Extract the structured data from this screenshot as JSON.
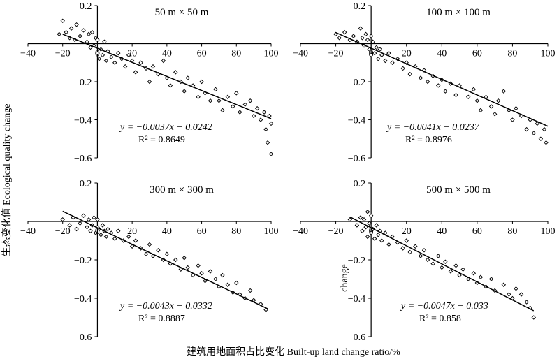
{
  "labels": {
    "y_axis": "生态变化值 Ecological quality change",
    "x_axis": "建筑用地面积占比变化 Built-up land change ratio/%",
    "panel4_extra_ylabel": "change"
  },
  "chart_data": [
    {
      "type": "scatter",
      "title": "50 m × 50 m",
      "xticks": [
        "−40",
        "−20",
        "0",
        "20",
        "40",
        "60",
        "80",
        "100"
      ],
      "yticks": [
        "0.2",
        "−0.2",
        "−0.4",
        "−0.6"
      ],
      "xlim": [
        -40,
        100
      ],
      "ylim": [
        -0.6,
        0.2
      ],
      "equation": "y = −0.0037x − 0.0242",
      "r2": "R² = 0.8649",
      "slope": -0.0037,
      "intercept": -0.0242,
      "line_x": [
        -20,
        100
      ],
      "points_x_range": [
        -22,
        100
      ],
      "points": [
        [
          -22,
          0.05
        ],
        [
          -20,
          0.12
        ],
        [
          -18,
          0.06
        ],
        [
          -16,
          0.03
        ],
        [
          -15,
          0.08
        ],
        [
          -13,
          0.02
        ],
        [
          -12,
          0.1
        ],
        [
          -10,
          0.04
        ],
        [
          -8,
          0.07
        ],
        [
          -6,
          0.01
        ],
        [
          -5,
          0.05
        ],
        [
          -4,
          -0.02
        ],
        [
          -3,
          0.06
        ],
        [
          -2,
          -0.01
        ],
        [
          -1,
          0.03
        ],
        [
          0,
          -0.05
        ],
        [
          0,
          0.02
        ],
        [
          1,
          -0.08
        ],
        [
          2,
          -0.03
        ],
        [
          3,
          -0.06
        ],
        [
          4,
          0.01
        ],
        [
          5,
          -0.09
        ],
        [
          6,
          -0.04
        ],
        [
          8,
          -0.07
        ],
        [
          10,
          -0.1
        ],
        [
          12,
          -0.05
        ],
        [
          14,
          -0.08
        ],
        [
          16,
          -0.12
        ],
        [
          18,
          -0.06
        ],
        [
          20,
          -0.09
        ],
        [
          22,
          -0.15
        ],
        [
          25,
          -0.1
        ],
        [
          28,
          -0.13
        ],
        [
          30,
          -0.2
        ],
        [
          32,
          -0.12
        ],
        [
          35,
          -0.16
        ],
        [
          38,
          -0.09
        ],
        [
          40,
          -0.18
        ],
        [
          42,
          -0.22
        ],
        [
          45,
          -0.15
        ],
        [
          48,
          -0.2
        ],
        [
          50,
          -0.25
        ],
        [
          52,
          -0.18
        ],
        [
          55,
          -0.22
        ],
        [
          58,
          -0.28
        ],
        [
          60,
          -0.2
        ],
        [
          62,
          -0.26
        ],
        [
          65,
          -0.3
        ],
        [
          68,
          -0.24
        ],
        [
          70,
          -0.3
        ],
        [
          72,
          -0.35
        ],
        [
          75,
          -0.28
        ],
        [
          78,
          -0.33
        ],
        [
          80,
          -0.26
        ],
        [
          82,
          -0.36
        ],
        [
          85,
          -0.32
        ],
        [
          88,
          -0.3
        ],
        [
          90,
          -0.38
        ],
        [
          92,
          -0.34
        ],
        [
          94,
          -0.4
        ],
        [
          96,
          -0.36
        ],
        [
          97,
          -0.45
        ],
        [
          98,
          -0.52
        ],
        [
          99,
          -0.38
        ],
        [
          100,
          -0.42
        ],
        [
          100,
          -0.58
        ]
      ]
    },
    {
      "type": "scatter",
      "title": "100 m × 100 m",
      "xticks": [
        "−40",
        "−20",
        "0",
        "20",
        "40",
        "60",
        "80",
        "100"
      ],
      "yticks": [
        "0.2",
        "−0.2",
        "−0.4",
        "−0.6"
      ],
      "xlim": [
        -40,
        100
      ],
      "ylim": [
        -0.6,
        0.2
      ],
      "equation": "y = −0.0041x − 0.0237",
      "r2": "R² = 0.8976",
      "slope": -0.0041,
      "intercept": -0.0237,
      "line_x": [
        -20,
        100
      ],
      "points": [
        [
          -20,
          0.05
        ],
        [
          -18,
          0.03
        ],
        [
          -15,
          0.06
        ],
        [
          -12,
          0.02
        ],
        [
          -10,
          0.04
        ],
        [
          -8,
          0.01
        ],
        [
          -6,
          0.08
        ],
        [
          -5,
          0.03
        ],
        [
          -4,
          -0.01
        ],
        [
          -3,
          0.05
        ],
        [
          -2,
          0.02
        ],
        [
          -1,
          -0.03
        ],
        [
          0,
          0.04
        ],
        [
          0,
          -0.06
        ],
        [
          1,
          0.01
        ],
        [
          2,
          -0.05
        ],
        [
          3,
          -0.02
        ],
        [
          4,
          -0.08
        ],
        [
          5,
          -0.03
        ],
        [
          6,
          -0.06
        ],
        [
          8,
          -0.09
        ],
        [
          10,
          -0.05
        ],
        [
          12,
          -0.1
        ],
        [
          15,
          -0.08
        ],
        [
          18,
          -0.13
        ],
        [
          20,
          -0.1
        ],
        [
          22,
          -0.16
        ],
        [
          25,
          -0.12
        ],
        [
          28,
          -0.18
        ],
        [
          30,
          -0.14
        ],
        [
          32,
          -0.2
        ],
        [
          35,
          -0.17
        ],
        [
          38,
          -0.22
        ],
        [
          40,
          -0.19
        ],
        [
          42,
          -0.25
        ],
        [
          45,
          -0.21
        ],
        [
          48,
          -0.27
        ],
        [
          50,
          -0.22
        ],
        [
          55,
          -0.28
        ],
        [
          58,
          -0.24
        ],
        [
          60,
          -0.3
        ],
        [
          62,
          -0.35
        ],
        [
          65,
          -0.28
        ],
        [
          68,
          -0.33
        ],
        [
          70,
          -0.37
        ],
        [
          72,
          -0.3
        ],
        [
          75,
          -0.25
        ],
        [
          78,
          -0.35
        ],
        [
          80,
          -0.4
        ],
        [
          82,
          -0.34
        ],
        [
          85,
          -0.38
        ],
        [
          88,
          -0.45
        ],
        [
          90,
          -0.4
        ],
        [
          92,
          -0.47
        ],
        [
          94,
          -0.42
        ],
        [
          96,
          -0.5
        ],
        [
          98,
          -0.45
        ],
        [
          99,
          -0.52
        ]
      ]
    },
    {
      "type": "scatter",
      "title": "300 m × 300 m",
      "xticks": [
        "−40",
        "−20",
        "0",
        "20",
        "40",
        "60",
        "80",
        "100"
      ],
      "yticks": [
        "0.2",
        "−0.2",
        "−0.4",
        "−0.6"
      ],
      "xlim": [
        -40,
        100
      ],
      "ylim": [
        -0.6,
        0.2
      ],
      "equation": "y = −0.0043x − 0.0332",
      "r2": "R² = 0.8887",
      "slope": -0.0043,
      "intercept": -0.0332,
      "line_x": [
        -20,
        98
      ],
      "points": [
        [
          -20,
          0.01
        ],
        [
          -16,
          -0.02
        ],
        [
          -14,
          0.02
        ],
        [
          -12,
          -0.04
        ],
        [
          -10,
          -0.01
        ],
        [
          -8,
          0.03
        ],
        [
          -6,
          -0.03
        ],
        [
          -5,
          0.01
        ],
        [
          -4,
          -0.05
        ],
        [
          -3,
          -0.02
        ],
        [
          -2,
          0.02
        ],
        [
          -1,
          -0.06
        ],
        [
          0,
          -0.03
        ],
        [
          0,
          0.01
        ],
        [
          1,
          -0.04
        ],
        [
          2,
          -0.07
        ],
        [
          3,
          -0.02
        ],
        [
          4,
          -0.05
        ],
        [
          5,
          -0.08
        ],
        [
          6,
          -0.04
        ],
        [
          8,
          -0.06
        ],
        [
          10,
          -0.09
        ],
        [
          12,
          -0.05
        ],
        [
          15,
          -0.1
        ],
        [
          18,
          -0.08
        ],
        [
          20,
          -0.13
        ],
        [
          22,
          -0.1
        ],
        [
          25,
          -0.14
        ],
        [
          28,
          -0.17
        ],
        [
          30,
          -0.12
        ],
        [
          32,
          -0.18
        ],
        [
          35,
          -0.15
        ],
        [
          38,
          -0.2
        ],
        [
          40,
          -0.17
        ],
        [
          42,
          -0.22
        ],
        [
          45,
          -0.2
        ],
        [
          48,
          -0.25
        ],
        [
          50,
          -0.19
        ],
        [
          52,
          -0.24
        ],
        [
          55,
          -0.28
        ],
        [
          58,
          -0.23
        ],
        [
          60,
          -0.27
        ],
        [
          62,
          -0.31
        ],
        [
          65,
          -0.26
        ],
        [
          68,
          -0.3
        ],
        [
          70,
          -0.34
        ],
        [
          72,
          -0.28
        ],
        [
          75,
          -0.33
        ],
        [
          78,
          -0.37
        ],
        [
          80,
          -0.32
        ],
        [
          82,
          -0.38
        ],
        [
          85,
          -0.4
        ],
        [
          88,
          -0.36
        ],
        [
          90,
          -0.41
        ],
        [
          94,
          -0.43
        ],
        [
          97,
          -0.46
        ]
      ]
    },
    {
      "type": "scatter",
      "title": "500 m × 500 m",
      "xticks": [
        "−40",
        "−20",
        "0",
        "20",
        "40",
        "60",
        "80",
        "100"
      ],
      "yticks": [
        "0.2",
        "−0.2",
        "−0.4",
        "−0.6"
      ],
      "xlim": [
        -40,
        100
      ],
      "ylim": [
        -0.6,
        0.2
      ],
      "equation": "y = −0.0047x − 0.033",
      "r2": "R² = 0.858",
      "slope": -0.0047,
      "intercept": -0.033,
      "line_x": [
        -12,
        92
      ],
      "points": [
        [
          -12,
          0.01
        ],
        [
          -8,
          -0.02
        ],
        [
          -6,
          0.02
        ],
        [
          -5,
          -0.05
        ],
        [
          -4,
          0.01
        ],
        [
          -3,
          -0.03
        ],
        [
          -2,
          0.05
        ],
        [
          -2,
          -0.08
        ],
        [
          -1,
          -0.01
        ],
        [
          0,
          -0.06
        ],
        [
          0,
          0.03
        ],
        [
          1,
          -0.04
        ],
        [
          2,
          -0.09
        ],
        [
          3,
          -0.02
        ],
        [
          4,
          -0.07
        ],
        [
          5,
          -0.05
        ],
        [
          6,
          -0.1
        ],
        [
          8,
          -0.06
        ],
        [
          10,
          -0.12
        ],
        [
          12,
          -0.08
        ],
        [
          15,
          -0.11
        ],
        [
          18,
          -0.14
        ],
        [
          20,
          -0.1
        ],
        [
          22,
          -0.16
        ],
        [
          25,
          -0.13
        ],
        [
          28,
          -0.18
        ],
        [
          30,
          -0.15
        ],
        [
          32,
          -0.2
        ],
        [
          35,
          -0.22
        ],
        [
          38,
          -0.18
        ],
        [
          40,
          -0.24
        ],
        [
          42,
          -0.21
        ],
        [
          45,
          -0.26
        ],
        [
          48,
          -0.23
        ],
        [
          50,
          -0.28
        ],
        [
          52,
          -0.25
        ],
        [
          55,
          -0.3
        ],
        [
          58,
          -0.27
        ],
        [
          60,
          -0.32
        ],
        [
          62,
          -0.29
        ],
        [
          65,
          -0.34
        ],
        [
          68,
          -0.3
        ],
        [
          70,
          -0.36
        ],
        [
          75,
          -0.33
        ],
        [
          78,
          -0.38
        ],
        [
          80,
          -0.4
        ],
        [
          82,
          -0.35
        ],
        [
          85,
          -0.38
        ],
        [
          88,
          -0.42
        ],
        [
          90,
          -0.45
        ],
        [
          92,
          -0.5
        ]
      ]
    }
  ]
}
